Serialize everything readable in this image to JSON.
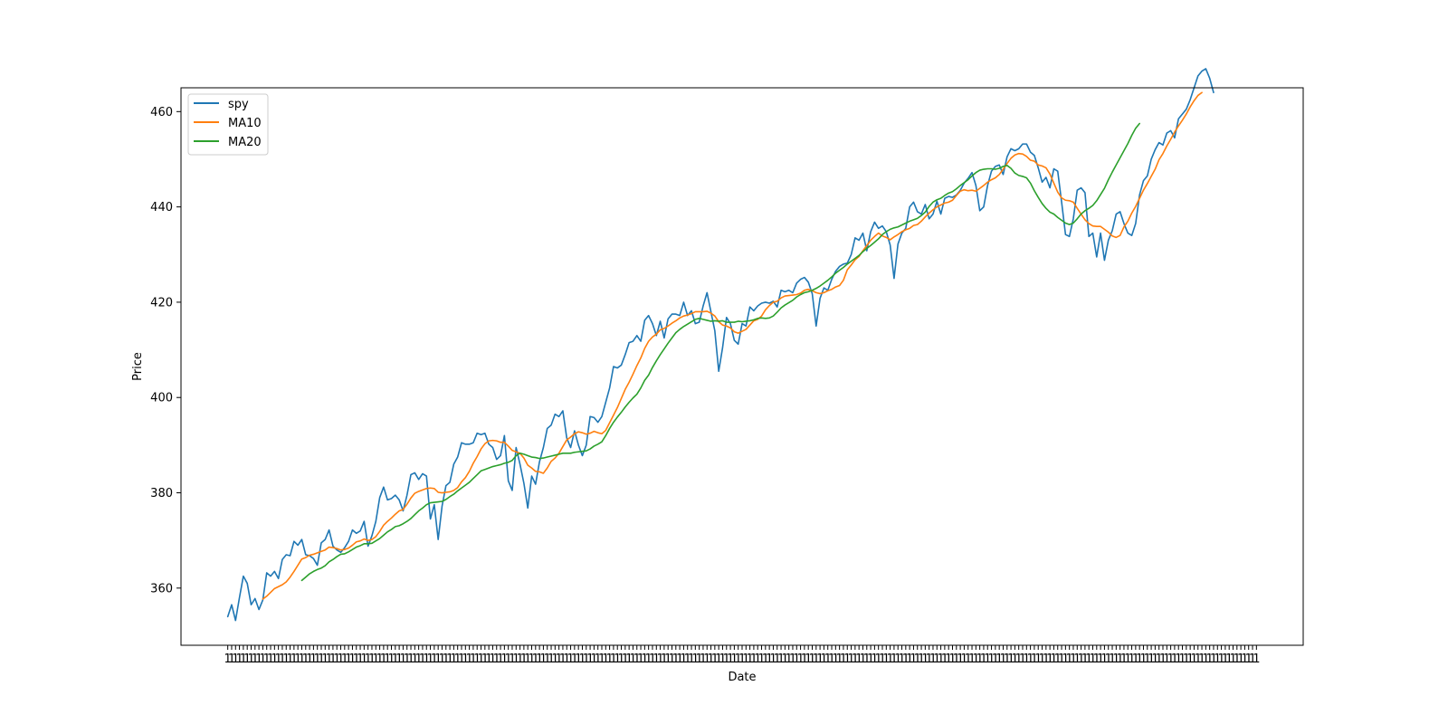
{
  "chart_data": {
    "type": "line",
    "xlabel": "Date",
    "ylabel": "Price",
    "ylim": [
      348,
      465
    ],
    "yticks": [
      360,
      380,
      400,
      420,
      440,
      460
    ],
    "xlim": [
      -12,
      276
    ],
    "x_tick_count": 265,
    "x_tick_label_text": "1",
    "grid": false,
    "legend": {
      "placement": "upper-left"
    },
    "colors": {
      "spy": "#1f77b4",
      "MA10": "#ff7f0e",
      "MA20": "#2ca02c"
    },
    "series": [
      {
        "name": "spy",
        "values": [
          354.0,
          356.5,
          353.2,
          358.0,
          362.5,
          361.0,
          356.5,
          357.8,
          355.5,
          357.5,
          363.2,
          362.5,
          363.5,
          362.0,
          366.0,
          367.0,
          366.8,
          369.8,
          369.0,
          370.2,
          367.0,
          366.8,
          366.2,
          364.8,
          369.5,
          370.2,
          372.2,
          368.8,
          368.0,
          367.5,
          368.5,
          369.8,
          372.2,
          371.5,
          372.0,
          374.0,
          368.8,
          371.0,
          374.0,
          379.0,
          381.2,
          378.5,
          378.8,
          379.5,
          378.5,
          376.2,
          379.5,
          383.8,
          384.2,
          382.8,
          384.0,
          383.5,
          374.5,
          377.5,
          370.2,
          377.2,
          381.5,
          382.2,
          386.0,
          387.5,
          390.5,
          390.2,
          390.2,
          390.5,
          392.5,
          392.2,
          392.5,
          390.2,
          389.5,
          387.0,
          387.8,
          392.0,
          382.5,
          380.5,
          389.5,
          386.0,
          382.0,
          376.8,
          383.5,
          381.8,
          386.5,
          389.5,
          393.5,
          394.2,
          396.5,
          396.0,
          397.2,
          391.5,
          389.5,
          393.0,
          390.0,
          387.8,
          390.0,
          396.0,
          395.8,
          394.8,
          396.0,
          399.0,
          402.0,
          406.5,
          406.2,
          406.8,
          409.0,
          411.5,
          411.8,
          413.0,
          411.8,
          416.2,
          417.2,
          415.5,
          413.0,
          416.0,
          412.5,
          416.5,
          417.5,
          417.5,
          417.2,
          420.0,
          417.2,
          418.2,
          415.5,
          415.8,
          419.2,
          422.0,
          418.0,
          414.0,
          405.5,
          410.5,
          416.8,
          415.5,
          412.0,
          411.2,
          415.5,
          415.0,
          419.0,
          418.2,
          419.2,
          419.8,
          420.0,
          419.8,
          420.2,
          419.0,
          422.5,
          422.2,
          422.5,
          422.0,
          424.0,
          424.8,
          425.2,
          424.2,
          421.8,
          415.0,
          420.8,
          423.0,
          422.5,
          424.8,
          426.5,
          427.5,
          428.0,
          428.2,
          430.0,
          433.5,
          433.0,
          434.5,
          430.8,
          434.8,
          436.8,
          435.5,
          436.0,
          434.8,
          432.0,
          425.0,
          432.2,
          434.5,
          435.5,
          440.0,
          441.0,
          439.0,
          438.5,
          440.5,
          437.5,
          438.5,
          441.2,
          438.5,
          441.8,
          442.2,
          442.0,
          442.5,
          443.5,
          445.0,
          446.0,
          447.2,
          444.5,
          439.2,
          440.0,
          444.5,
          447.5,
          448.5,
          448.8,
          446.8,
          450.5,
          452.2,
          451.8,
          452.2,
          453.2,
          453.2,
          451.5,
          450.8,
          448.2,
          445.2,
          446.2,
          444.0,
          448.0,
          447.5,
          441.0,
          434.2,
          433.8,
          437.5,
          443.5,
          444.0,
          443.0,
          433.8,
          434.5,
          429.5,
          434.5,
          428.8,
          433.0,
          435.0,
          438.5,
          439.0,
          436.5,
          434.5,
          434.0,
          436.5,
          442.5,
          445.5,
          446.5,
          450.0,
          452.0,
          453.5,
          453.0,
          455.5,
          456.0,
          454.5,
          458.5,
          459.5,
          460.5,
          462.5,
          465.0,
          467.5,
          468.5,
          469.0,
          467.0,
          464.0
        ]
      },
      {
        "name": "MA10",
        "values": [
          null,
          null,
          null,
          null,
          null,
          null,
          null,
          null,
          null,
          357.7,
          358.3,
          359.1,
          359.9,
          360.3,
          360.7,
          361.3,
          362.3,
          363.5,
          364.8,
          366.1,
          366.4,
          366.9,
          367.1,
          367.4,
          367.7,
          368.0,
          368.6,
          368.5,
          368.3,
          368.0,
          368.1,
          368.4,
          369.0,
          369.7,
          369.9,
          370.3,
          370.0,
          370.2,
          370.8,
          371.9,
          373.2,
          374.0,
          374.7,
          375.5,
          376.2,
          376.5,
          377.6,
          378.9,
          379.9,
          380.3,
          380.6,
          380.9,
          381.0,
          380.9,
          380.1,
          380.0,
          380.1,
          380.2,
          380.5,
          381.1,
          382.3,
          383.2,
          384.5,
          386.2,
          387.6,
          389.2,
          390.3,
          390.9,
          391.0,
          390.9,
          390.6,
          390.6,
          389.8,
          388.9,
          388.6,
          388.3,
          387.3,
          385.8,
          385.2,
          384.5,
          384.4,
          384.1,
          385.2,
          386.6,
          387.3,
          388.3,
          389.7,
          391.1,
          391.7,
          392.4,
          392.8,
          392.6,
          392.3,
          392.5,
          392.9,
          392.6,
          392.4,
          393.1,
          394.7,
          396.3,
          397.9,
          399.8,
          401.7,
          403.2,
          404.9,
          406.7,
          408.3,
          410.3,
          411.8,
          412.7,
          413.3,
          414.2,
          414.5,
          415.0,
          415.6,
          416.1,
          416.7,
          417.1,
          417.3,
          417.6,
          418.0,
          418.0,
          418.0,
          418.1,
          417.7,
          417.1,
          415.9,
          415.2,
          415.0,
          414.6,
          413.8,
          413.5,
          413.9,
          414.3,
          415.2,
          416.1,
          416.4,
          417.1,
          418.4,
          419.3,
          420.0,
          420.2,
          420.9,
          421.3,
          421.4,
          421.5,
          421.6,
          421.9,
          422.5,
          422.7,
          422.4,
          422.0,
          421.8,
          422.0,
          422.4,
          422.7,
          423.2,
          423.5,
          424.6,
          426.8,
          427.8,
          428.9,
          429.6,
          430.8,
          431.9,
          433.0,
          433.8,
          434.5,
          433.9,
          433.6,
          433.1,
          433.7,
          434.2,
          434.8,
          435.2,
          435.5,
          436.1,
          436.3,
          437.0,
          437.9,
          438.7,
          439.4,
          440.0,
          440.4,
          440.8,
          441.0,
          441.4,
          442.4,
          443.3,
          443.6,
          443.4,
          443.5,
          443.3,
          443.9,
          444.5,
          445.2,
          445.7,
          446.1,
          446.8,
          447.9,
          449.1,
          450.2,
          450.9,
          451.2,
          451.1,
          450.6,
          449.8,
          449.6,
          448.8,
          448.6,
          448.2,
          446.9,
          445.0,
          443.1,
          441.9,
          441.4,
          441.3,
          441.0,
          439.7,
          438.5,
          437.3,
          436.5,
          436.0,
          435.9,
          435.9,
          435.3,
          434.7,
          433.9,
          433.6,
          434.0,
          435.8,
          437.0,
          438.7,
          440.1,
          441.8,
          443.5,
          444.9,
          446.4,
          447.9,
          449.9,
          451.2,
          452.8,
          454.2,
          455.7,
          457.0,
          458.2,
          459.5,
          461.0,
          462.3,
          463.4,
          464.0
        ]
      },
      {
        "name": "MA20",
        "values": [
          null,
          null,
          null,
          null,
          null,
          null,
          null,
          null,
          null,
          null,
          null,
          null,
          null,
          null,
          null,
          null,
          null,
          null,
          null,
          361.6,
          362.3,
          363.0,
          363.5,
          363.9,
          364.2,
          364.7,
          365.5,
          366.0,
          366.6,
          367.1,
          367.2,
          367.6,
          368.1,
          368.6,
          368.9,
          369.3,
          369.3,
          369.4,
          369.9,
          370.4,
          371.1,
          371.8,
          372.3,
          372.9,
          373.1,
          373.5,
          374.0,
          374.6,
          375.4,
          376.2,
          376.8,
          377.5,
          377.9,
          378.0,
          378.1,
          378.2,
          378.6,
          379.2,
          379.7,
          380.4,
          381.0,
          381.6,
          382.2,
          383.0,
          383.8,
          384.6,
          384.9,
          385.2,
          385.5,
          385.7,
          385.9,
          386.2,
          386.4,
          386.8,
          387.8,
          388.3,
          388.1,
          387.8,
          387.5,
          387.4,
          387.2,
          387.3,
          387.5,
          387.7,
          387.9,
          388.1,
          388.3,
          388.3,
          388.3,
          388.5,
          388.6,
          388.7,
          388.8,
          389.2,
          389.8,
          390.2,
          390.7,
          392.0,
          393.5,
          394.8,
          395.9,
          396.9,
          398.0,
          399.0,
          399.9,
          400.7,
          402.0,
          403.6,
          404.7,
          406.3,
          407.7,
          409.0,
          410.2,
          411.4,
          412.5,
          413.6,
          414.3,
          414.9,
          415.4,
          415.9,
          416.4,
          416.6,
          416.4,
          416.2,
          416.0,
          416.1,
          416.0,
          416.1,
          415.8,
          415.8,
          415.8,
          416.0,
          415.9,
          416.0,
          416.1,
          416.3,
          416.6,
          416.7,
          416.6,
          416.7,
          417.1,
          417.9,
          418.8,
          419.4,
          419.9,
          420.4,
          421.1,
          421.6,
          422.0,
          422.2,
          422.5,
          422.9,
          423.4,
          424.0,
          424.6,
          425.3,
          426.1,
          426.7,
          427.3,
          428.0,
          428.6,
          429.2,
          429.8,
          430.6,
          431.3,
          431.9,
          432.6,
          433.3,
          434.2,
          434.8,
          435.3,
          435.6,
          435.8,
          436.2,
          436.6,
          437.0,
          437.3,
          437.6,
          438.2,
          438.9,
          440.1,
          441.0,
          441.5,
          441.8,
          442.4,
          442.9,
          443.2,
          443.8,
          444.5,
          445.1,
          445.7,
          446.5,
          447.2,
          447.7,
          447.9,
          448.0,
          448.0,
          447.9,
          448.1,
          448.5,
          448.7,
          448.1,
          447.1,
          446.6,
          446.4,
          446.1,
          445.0,
          443.4,
          442.0,
          440.7,
          439.7,
          438.9,
          438.5,
          437.8,
          437.2,
          436.6,
          436.3,
          436.6,
          437.5,
          438.5,
          439.2,
          439.7,
          440.3,
          441.3,
          442.6,
          443.9,
          445.7,
          447.3,
          448.8,
          450.3,
          451.8,
          453.3,
          455.0,
          456.5,
          457.5
        ]
      }
    ]
  }
}
